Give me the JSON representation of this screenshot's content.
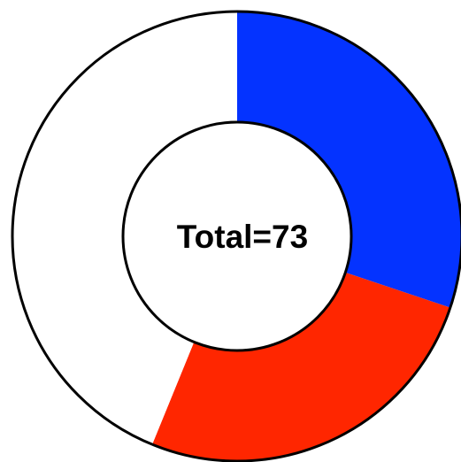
{
  "chart_data": {
    "type": "pie",
    "variant": "donut",
    "center_label": "Total=73",
    "total": 73,
    "slices": [
      {
        "value": 22,
        "color": "#0433ff"
      },
      {
        "value": 19,
        "color": "#ff2600"
      },
      {
        "value": 32,
        "color": "#ffffff"
      }
    ],
    "start_angle_deg": 0,
    "direction": "clockwise",
    "outline_color": "#000000",
    "background": "#ffffff"
  }
}
